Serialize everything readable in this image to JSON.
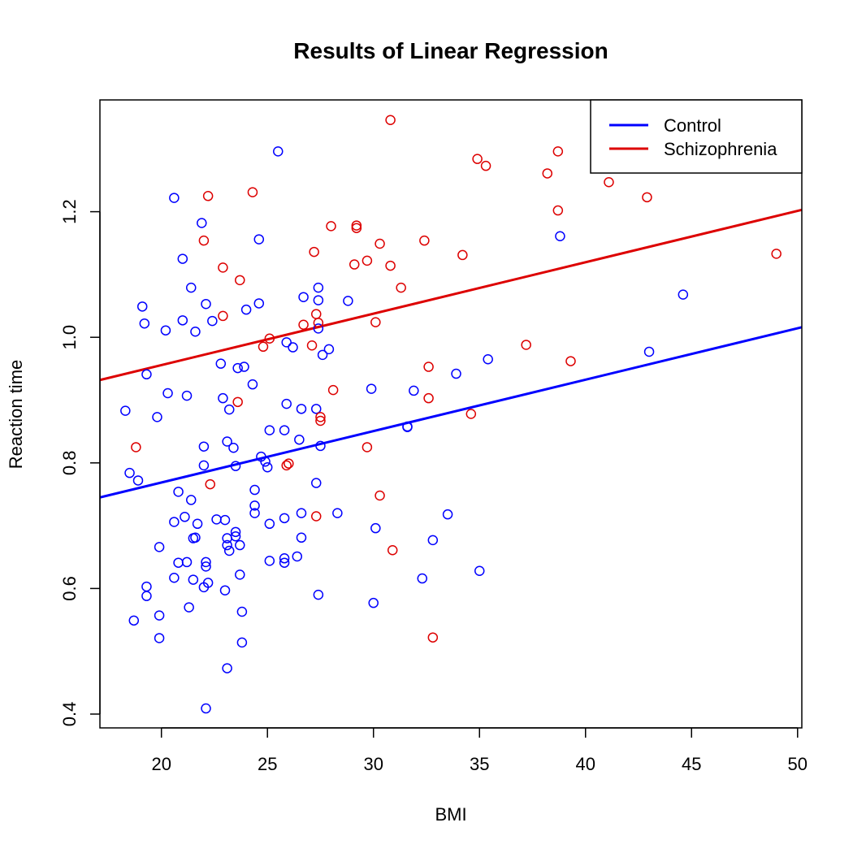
{
  "chart_data": {
    "type": "scatter",
    "title": "Results of Linear Regression",
    "xlabel": "BMI",
    "ylabel": "Reaction time",
    "xlim": [
      17.1,
      50.2
    ],
    "ylim": [
      0.378,
      1.378
    ],
    "xticks": [
      20,
      25,
      30,
      35,
      40,
      45,
      50
    ],
    "yticks": [
      0.4,
      0.6,
      0.8,
      1.0,
      1.2
    ],
    "ytick_labels": [
      "0.4",
      "0.6",
      "0.8",
      "1.0",
      "1.2"
    ],
    "grid": false,
    "legend_position": "top-right",
    "series": [
      {
        "name": "Control",
        "color": "#0000ff",
        "fit_line": [
          [
            17.1,
            0.745
          ],
          [
            50.2,
            1.016
          ]
        ],
        "points": [
          [
            18.3,
            0.883
          ],
          [
            18.5,
            0.784
          ],
          [
            18.7,
            0.549
          ],
          [
            18.9,
            0.772
          ],
          [
            19.1,
            1.049
          ],
          [
            19.2,
            1.022
          ],
          [
            19.3,
            0.941
          ],
          [
            19.3,
            0.603
          ],
          [
            19.3,
            0.588
          ],
          [
            19.8,
            0.873
          ],
          [
            19.9,
            0.666
          ],
          [
            19.9,
            0.557
          ],
          [
            19.9,
            0.521
          ],
          [
            20.2,
            1.011
          ],
          [
            20.3,
            0.911
          ],
          [
            20.6,
            1.222
          ],
          [
            20.6,
            0.706
          ],
          [
            20.6,
            0.617
          ],
          [
            20.8,
            0.754
          ],
          [
            20.8,
            0.641
          ],
          [
            21.0,
            1.125
          ],
          [
            21.0,
            1.027
          ],
          [
            21.1,
            0.714
          ],
          [
            21.2,
            0.907
          ],
          [
            21.2,
            0.642
          ],
          [
            21.3,
            0.57
          ],
          [
            21.4,
            1.079
          ],
          [
            21.4,
            0.741
          ],
          [
            21.5,
            0.68
          ],
          [
            21.5,
            0.614
          ],
          [
            21.6,
            1.009
          ],
          [
            21.6,
            0.681
          ],
          [
            21.7,
            0.703
          ],
          [
            21.9,
            1.182
          ],
          [
            22.0,
            0.826
          ],
          [
            22.0,
            0.796
          ],
          [
            22.0,
            0.602
          ],
          [
            22.1,
            1.053
          ],
          [
            22.1,
            0.642
          ],
          [
            22.1,
            0.635
          ],
          [
            22.1,
            0.409
          ],
          [
            22.2,
            0.609
          ],
          [
            22.4,
            1.026
          ],
          [
            22.6,
            0.71
          ],
          [
            22.8,
            0.958
          ],
          [
            22.9,
            0.903
          ],
          [
            23.0,
            0.709
          ],
          [
            23.0,
            0.597
          ],
          [
            23.1,
            0.834
          ],
          [
            23.1,
            0.68
          ],
          [
            23.1,
            0.669
          ],
          [
            23.1,
            0.473
          ],
          [
            23.2,
            0.885
          ],
          [
            23.2,
            0.66
          ],
          [
            23.4,
            0.824
          ],
          [
            23.5,
            0.795
          ],
          [
            23.5,
            0.69
          ],
          [
            23.5,
            0.683
          ],
          [
            23.6,
            0.951
          ],
          [
            23.7,
            0.669
          ],
          [
            23.7,
            0.622
          ],
          [
            23.8,
            0.563
          ],
          [
            23.8,
            0.514
          ],
          [
            23.9,
            0.953
          ],
          [
            24.0,
            1.044
          ],
          [
            24.3,
            0.925
          ],
          [
            24.4,
            0.757
          ],
          [
            24.4,
            0.732
          ],
          [
            24.4,
            0.72
          ],
          [
            24.6,
            1.054
          ],
          [
            24.6,
            1.156
          ],
          [
            24.7,
            0.81
          ],
          [
            24.9,
            0.802
          ],
          [
            25.0,
            0.793
          ],
          [
            25.1,
            0.852
          ],
          [
            25.1,
            0.703
          ],
          [
            25.1,
            0.644
          ],
          [
            25.5,
            1.296
          ],
          [
            25.8,
            0.852
          ],
          [
            25.8,
            0.712
          ],
          [
            25.8,
            0.648
          ],
          [
            25.8,
            0.641
          ],
          [
            25.9,
            0.894
          ],
          [
            25.9,
            0.992
          ],
          [
            26.2,
            0.984
          ],
          [
            26.4,
            0.651
          ],
          [
            26.5,
            0.837
          ],
          [
            26.6,
            0.886
          ],
          [
            26.6,
            0.72
          ],
          [
            26.6,
            0.681
          ],
          [
            26.7,
            1.064
          ],
          [
            27.3,
            0.886
          ],
          [
            27.3,
            0.768
          ],
          [
            27.4,
            1.079
          ],
          [
            27.4,
            1.059
          ],
          [
            27.4,
            1.014
          ],
          [
            27.4,
            0.59
          ],
          [
            27.5,
            0.827
          ],
          [
            27.6,
            0.972
          ],
          [
            27.9,
            0.981
          ],
          [
            28.3,
            0.72
          ],
          [
            28.8,
            1.058
          ],
          [
            29.9,
            0.918
          ],
          [
            30.0,
            0.577
          ],
          [
            30.1,
            0.696
          ],
          [
            31.6,
            0.858
          ],
          [
            31.6,
            0.857
          ],
          [
            31.9,
            0.915
          ],
          [
            32.3,
            0.616
          ],
          [
            32.8,
            0.677
          ],
          [
            33.5,
            0.718
          ],
          [
            33.9,
            0.942
          ],
          [
            35.0,
            0.628
          ],
          [
            35.4,
            0.965
          ],
          [
            38.8,
            1.161
          ],
          [
            43.0,
            0.977
          ],
          [
            44.6,
            1.068
          ]
        ]
      },
      {
        "name": "Schizophrenia",
        "color": "#dd0000",
        "fit_line": [
          [
            17.1,
            0.932
          ],
          [
            50.2,
            1.203
          ]
        ],
        "points": [
          [
            18.8,
            0.825
          ],
          [
            22.0,
            1.154
          ],
          [
            22.2,
            1.225
          ],
          [
            22.3,
            0.766
          ],
          [
            22.9,
            1.111
          ],
          [
            22.9,
            1.034
          ],
          [
            23.6,
            0.897
          ],
          [
            23.7,
            1.091
          ],
          [
            24.3,
            1.231
          ],
          [
            24.8,
            0.985
          ],
          [
            25.1,
            0.998
          ],
          [
            25.9,
            0.796
          ],
          [
            26.0,
            0.799
          ],
          [
            26.7,
            1.02
          ],
          [
            27.1,
            0.987
          ],
          [
            27.2,
            1.136
          ],
          [
            27.3,
            1.037
          ],
          [
            27.3,
            0.715
          ],
          [
            27.4,
            1.023
          ],
          [
            27.5,
            0.873
          ],
          [
            27.5,
            0.867
          ],
          [
            28.0,
            1.177
          ],
          [
            28.1,
            0.916
          ],
          [
            29.1,
            1.116
          ],
          [
            29.2,
            1.178
          ],
          [
            29.2,
            1.174
          ],
          [
            29.7,
            1.122
          ],
          [
            29.7,
            0.825
          ],
          [
            30.1,
            1.024
          ],
          [
            30.3,
            1.149
          ],
          [
            30.3,
            0.748
          ],
          [
            30.8,
            1.346
          ],
          [
            30.8,
            1.114
          ],
          [
            30.9,
            0.661
          ],
          [
            31.3,
            1.079
          ],
          [
            32.4,
            1.154
          ],
          [
            32.6,
            0.953
          ],
          [
            32.6,
            0.903
          ],
          [
            32.8,
            0.522
          ],
          [
            34.2,
            1.131
          ],
          [
            34.6,
            0.878
          ],
          [
            34.9,
            1.284
          ],
          [
            35.3,
            1.273
          ],
          [
            37.2,
            0.988
          ],
          [
            38.2,
            1.261
          ],
          [
            38.7,
            1.296
          ],
          [
            38.7,
            1.202
          ],
          [
            39.3,
            0.962
          ],
          [
            41.1,
            1.247
          ],
          [
            42.9,
            1.223
          ],
          [
            49.0,
            1.133
          ]
        ]
      }
    ]
  }
}
